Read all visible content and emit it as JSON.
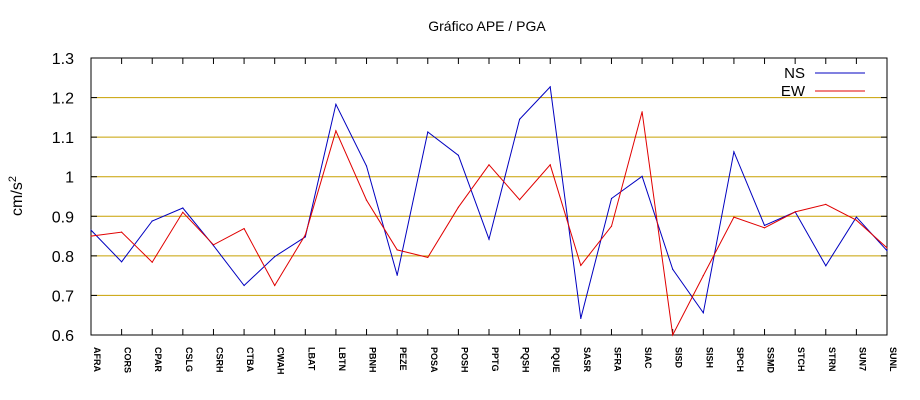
{
  "chart_data": {
    "type": "line",
    "title": "Gráfico  APE / PGA",
    "xlabel": "",
    "ylabel": "cm/s²",
    "ylabel_base": "cm/s",
    "ylabel_sup": "2",
    "ylim": [
      0.6,
      1.3
    ],
    "yticks": [
      "0.6",
      "0.7",
      "0.8",
      "0.9",
      "1",
      "1.1",
      "1.2",
      "1.3"
    ],
    "grid": "horizontal",
    "legend_position": "top-right",
    "categories": [
      "AFRA",
      "CORS",
      "CPAR",
      "CSLG",
      "CSRH",
      "CTBA",
      "CWAH",
      "LBAT",
      "LBTN",
      "PBNH",
      "PEZE",
      "POSA",
      "POSH",
      "PPTG",
      "PQSH",
      "PQUE",
      "SASR",
      "SFRA",
      "SIAC",
      "SISD",
      "SISH",
      "SPCH",
      "SSMD",
      "STCH",
      "STRN",
      "SUN7",
      "SUNL"
    ],
    "series": [
      {
        "name": "NS",
        "color": "#0000c0",
        "values": [
          0.865,
          0.785,
          0.888,
          0.921,
          0.826,
          0.725,
          0.798,
          0.848,
          1.183,
          1.027,
          0.751,
          1.113,
          1.054,
          0.842,
          1.145,
          1.227,
          0.642,
          0.945,
          1.001,
          0.766,
          0.656,
          1.063,
          0.877,
          0.911,
          0.775,
          0.898,
          0.813
        ]
      },
      {
        "name": "EW",
        "color": "#e00000",
        "values": [
          0.85,
          0.86,
          0.784,
          0.91,
          0.828,
          0.869,
          0.725,
          0.853,
          1.116,
          0.941,
          0.815,
          0.796,
          0.923,
          1.03,
          0.942,
          1.03,
          0.776,
          0.875,
          1.164,
          0.6,
          0.75,
          0.898,
          0.871,
          0.911,
          0.93,
          0.89,
          0.82
        ]
      }
    ],
    "grid_color": "#c8a000"
  }
}
